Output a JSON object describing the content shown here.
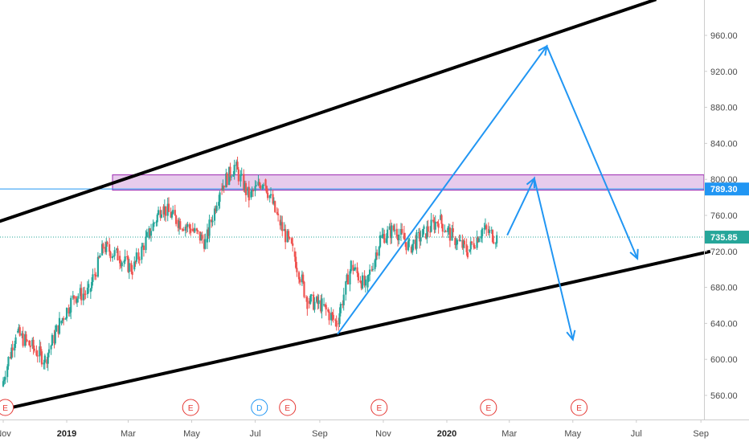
{
  "chart_data": {
    "type": "candlestick",
    "symbol_series": "price",
    "y_axis": {
      "ticks": [
        "960.00",
        "920.00",
        "880.00",
        "840.00",
        "800.00",
        "760.00",
        "720.00",
        "680.00",
        "640.00",
        "600.00",
        "560.00"
      ],
      "ylim": [
        530,
        990
      ],
      "position": "right"
    },
    "x_axis": {
      "ticks": [
        {
          "label": "Nov",
          "month": "2018-11"
        },
        {
          "label": "2019",
          "month": "2019-01",
          "bold": true
        },
        {
          "label": "Mar",
          "month": "2019-03"
        },
        {
          "label": "May",
          "month": "2019-05"
        },
        {
          "label": "Jul",
          "month": "2019-07"
        },
        {
          "label": "Sep",
          "month": "2019-09"
        },
        {
          "label": "Nov",
          "month": "2019-11"
        },
        {
          "label": "2020",
          "month": "2020-01",
          "bold": true
        },
        {
          "label": "Mar",
          "month": "2020-03"
        },
        {
          "label": "May",
          "month": "2020-05"
        },
        {
          "label": "Jul",
          "month": "2020-07"
        },
        {
          "label": "Sep",
          "month": "2020-09"
        }
      ]
    },
    "price_tags": [
      {
        "label": "789.30",
        "value": 789.3,
        "bg": "#2196f3",
        "fg": "#ffffff",
        "line": "solid"
      },
      {
        "label": "735.85",
        "value": 735.85,
        "bg": "#26a69a",
        "fg": "#ffffff",
        "line": "dotted"
      }
    ],
    "resistance_zone": {
      "low": 788,
      "high": 805,
      "fill": "#e1bee7",
      "stroke": "#9c27b0"
    },
    "channel": {
      "upper": [
        [
          "2018-10-25",
          752
        ],
        [
          "2020-07-20",
          1000
        ]
      ],
      "lower": [
        [
          "2018-11-03",
          545
        ],
        [
          "2020-09-10",
          720
        ]
      ],
      "color": "#000000"
    },
    "projection_path": [
      [
        "2019-09-18",
        628
      ],
      [
        "2020-04-06",
        948
      ],
      [
        "2020-07-02",
        712
      ]
    ],
    "projection_path_2": [
      [
        "2020-02-28",
        738
      ],
      [
        "2020-03-25",
        801
      ],
      [
        "2020-05-01",
        622
      ]
    ],
    "projection_color": "#2196f3",
    "candles": [
      [
        "2018-11-01",
        540,
        580,
        535,
        570
      ],
      [
        "2018-11-15",
        570,
        640,
        565,
        630
      ],
      [
        "2018-11-29",
        630,
        650,
        600,
        615
      ],
      [
        "2018-12-13",
        615,
        640,
        580,
        600
      ],
      [
        "2018-12-27",
        600,
        650,
        595,
        640
      ],
      [
        "2019-01-10",
        640,
        690,
        625,
        670
      ],
      [
        "2019-01-24",
        670,
        690,
        650,
        675
      ],
      [
        "2019-02-07",
        675,
        735,
        670,
        725
      ],
      [
        "2019-02-21",
        725,
        740,
        700,
        715
      ],
      [
        "2019-03-07",
        715,
        730,
        680,
        700
      ],
      [
        "2019-03-21",
        700,
        745,
        695,
        735
      ],
      [
        "2019-04-04",
        735,
        785,
        730,
        770
      ],
      [
        "2019-04-18",
        770,
        780,
        745,
        755
      ],
      [
        "2019-05-02",
        755,
        775,
        735,
        745
      ],
      [
        "2019-05-16",
        745,
        760,
        715,
        730
      ],
      [
        "2019-05-30",
        730,
        800,
        725,
        790
      ],
      [
        "2019-06-13",
        790,
        830,
        785,
        815
      ],
      [
        "2019-06-27",
        815,
        825,
        770,
        780
      ],
      [
        "2019-07-11",
        780,
        820,
        770,
        800
      ],
      [
        "2019-07-25",
        800,
        810,
        740,
        755
      ],
      [
        "2019-08-08",
        755,
        760,
        700,
        720
      ],
      [
        "2019-08-22",
        720,
        725,
        650,
        665
      ],
      [
        "2019-09-05",
        665,
        690,
        640,
        660
      ],
      [
        "2019-09-19",
        660,
        680,
        625,
        640
      ],
      [
        "2019-10-03",
        640,
        730,
        635,
        705
      ],
      [
        "2019-10-17",
        705,
        720,
        660,
        680
      ],
      [
        "2019-10-31",
        680,
        750,
        675,
        735
      ],
      [
        "2019-11-14",
        735,
        755,
        720,
        745
      ],
      [
        "2019-11-28",
        745,
        760,
        715,
        725
      ],
      [
        "2019-12-12",
        725,
        750,
        710,
        740
      ],
      [
        "2019-12-26",
        740,
        765,
        730,
        755
      ],
      [
        "2020-01-09",
        755,
        765,
        725,
        735
      ],
      [
        "2020-01-23",
        735,
        750,
        710,
        720
      ],
      [
        "2020-02-06",
        720,
        755,
        700,
        745
      ],
      [
        "2020-02-20",
        745,
        760,
        715,
        735
      ]
    ],
    "event_markers": [
      {
        "label": "E",
        "date": "2018-11-03",
        "color": "#e53935"
      },
      {
        "label": "E",
        "date": "2019-04-30",
        "color": "#e53935"
      },
      {
        "label": "D",
        "date": "2019-07-05",
        "color": "#2196f3"
      },
      {
        "label": "E",
        "date": "2019-08-01",
        "color": "#e53935"
      },
      {
        "label": "E",
        "date": "2019-10-28",
        "color": "#e53935"
      },
      {
        "label": "E",
        "date": "2020-02-10",
        "color": "#e53935"
      },
      {
        "label": "E",
        "date": "2020-05-07",
        "color": "#e53935"
      }
    ],
    "colors": {
      "up": "#26a69a",
      "down": "#ef5350",
      "grid": "#e6e6e6",
      "axis": "#cccccc"
    },
    "grid": false,
    "legend": "none"
  }
}
